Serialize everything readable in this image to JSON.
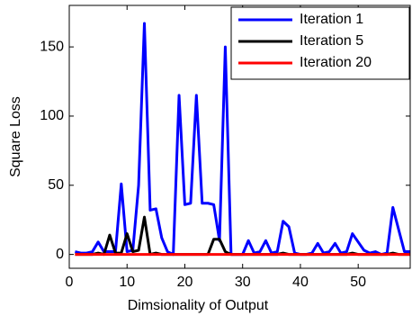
{
  "chart_data": {
    "type": "line",
    "x_label": "Dimsionality of Output",
    "y_label": "Square Loss",
    "x": [
      1,
      2,
      3,
      4,
      5,
      6,
      7,
      8,
      9,
      10,
      11,
      12,
      13,
      14,
      15,
      16,
      17,
      18,
      19,
      20,
      21,
      22,
      23,
      24,
      25,
      26,
      27,
      28,
      29,
      30,
      31,
      32,
      33,
      34,
      35,
      36,
      37,
      38,
      39,
      40,
      41,
      42,
      43,
      44,
      45,
      46,
      47,
      48,
      49,
      50,
      51,
      52,
      53,
      54,
      55,
      56,
      57,
      58,
      59
    ],
    "series": [
      {
        "name": "Iteration 1",
        "color": "#0000ff",
        "values": [
          2,
          1,
          1,
          2,
          9,
          2,
          2,
          2,
          51,
          2,
          3,
          50,
          167,
          32,
          33,
          12,
          2,
          0,
          115,
          36,
          37,
          115,
          37,
          37,
          36,
          10,
          150,
          0,
          0,
          0,
          10,
          1,
          2,
          10,
          1,
          2,
          24,
          20,
          1,
          0,
          0,
          1,
          8,
          1,
          2,
          8,
          1,
          2,
          15,
          9,
          3,
          1,
          2,
          0,
          1,
          34,
          18,
          2,
          2
        ]
      },
      {
        "name": "Iteration 5",
        "color": "#000000",
        "values": [
          0,
          0,
          0,
          0,
          1,
          0,
          14,
          1,
          1,
          15,
          2,
          3,
          27,
          0,
          1,
          0,
          0,
          0,
          0,
          0,
          0,
          0,
          0,
          0,
          11,
          11,
          2,
          0,
          0,
          0,
          0,
          0,
          0,
          0,
          0,
          0,
          1,
          0,
          0,
          0,
          0,
          0,
          0,
          0,
          0,
          0,
          0,
          0,
          1,
          0,
          0,
          0,
          0,
          0,
          0,
          1,
          0,
          0,
          0
        ]
      },
      {
        "name": "Iteration 20",
        "color": "#ff0000",
        "values": [
          0,
          0,
          0,
          0,
          0,
          0,
          0,
          0,
          0,
          0,
          0,
          0,
          0,
          0,
          0,
          0,
          0,
          0,
          0,
          0,
          0,
          0,
          0,
          0,
          0,
          0,
          0,
          0,
          0,
          0,
          0,
          0,
          0,
          0,
          0,
          0,
          0,
          0,
          0,
          0,
          0,
          0,
          0,
          0,
          0,
          0,
          0,
          0,
          0,
          0,
          0,
          0,
          0,
          0,
          0,
          0,
          0,
          0,
          0
        ]
      }
    ],
    "xlim": [
      0,
      59
    ],
    "xticks": [
      0,
      10,
      20,
      30,
      40,
      50
    ],
    "ylim": [
      -10,
      180
    ],
    "yticks": [
      0,
      50,
      100,
      150
    ],
    "legend": "top-right"
  }
}
